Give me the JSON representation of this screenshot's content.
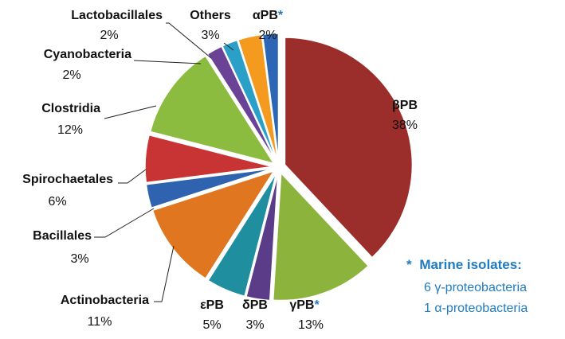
{
  "chart_data": {
    "type": "pie",
    "slices": [
      {
        "label": "βPB",
        "value": 38,
        "display": "38%",
        "color": "#9b2d2b",
        "marine": false
      },
      {
        "label": "γPB",
        "value": 13,
        "display": "13%",
        "color": "#8cb43c",
        "marine": true
      },
      {
        "label": "δPB",
        "value": 3,
        "display": "3%",
        "color": "#5b3c88",
        "marine": false
      },
      {
        "label": "εPB",
        "value": 5,
        "display": "5%",
        "color": "#1f8fa0",
        "marine": false
      },
      {
        "label": "Actinobacteria",
        "value": 11,
        "display": "11%",
        "color": "#e0761f",
        "marine": false
      },
      {
        "label": "Bacillales",
        "value": 3,
        "display": "3%",
        "color": "#2f63b0",
        "marine": false
      },
      {
        "label": "Spirochaetales",
        "value": 6,
        "display": "6%",
        "color": "#c83434",
        "marine": false
      },
      {
        "label": "Clostridia",
        "value": 12,
        "display": "12%",
        "color": "#8bbb3f",
        "marine": false
      },
      {
        "label": "Cyanobacteria",
        "value": 2,
        "display": "2%",
        "color": "#6b4396",
        "marine": false
      },
      {
        "label": "Lactobacillales",
        "value": 2,
        "display": "2%",
        "color": "#2aa0c9",
        "marine": false
      },
      {
        "label": "Others",
        "value": 3,
        "display": "3%",
        "color": "#f39a1f",
        "marine": false
      },
      {
        "label": "αPB",
        "value": 2,
        "display": "2%",
        "color": "#2e66b6",
        "marine": true
      }
    ],
    "marker": "*",
    "note": {
      "title": "Marine isolates:",
      "lines": [
        "6 γ-proteobacteria",
        "1 α-proteobacteria"
      ]
    }
  }
}
